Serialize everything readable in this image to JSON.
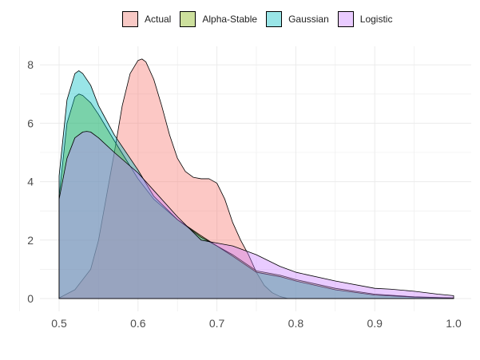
{
  "chart_data": {
    "type": "area",
    "title": "",
    "xlabel": "",
    "ylabel": "",
    "xlim": [
      0.5,
      1.0
    ],
    "ylim": [
      0,
      8.4
    ],
    "x_ticks": [
      "0.5",
      "0.6",
      "0.7",
      "0.8",
      "0.9",
      "1.0"
    ],
    "y_ticks": [
      "0",
      "2",
      "4",
      "6",
      "8"
    ],
    "grid": true,
    "legend_position": "top",
    "series": [
      {
        "name": "Actual",
        "color": "#F8766D",
        "x": [
          0.5,
          0.52,
          0.54,
          0.55,
          0.56,
          0.57,
          0.58,
          0.59,
          0.6,
          0.605,
          0.61,
          0.62,
          0.63,
          0.64,
          0.65,
          0.66,
          0.67,
          0.68,
          0.69,
          0.7,
          0.71,
          0.72,
          0.73,
          0.74,
          0.75,
          0.76,
          0.77,
          0.78,
          0.79
        ],
        "y": [
          0.02,
          0.3,
          1.0,
          2.0,
          3.5,
          5.0,
          6.6,
          7.7,
          8.15,
          8.2,
          8.1,
          7.5,
          6.6,
          5.6,
          4.8,
          4.35,
          4.15,
          4.1,
          4.1,
          3.95,
          3.4,
          2.6,
          2.0,
          1.5,
          0.9,
          0.45,
          0.2,
          0.07,
          0.0
        ]
      },
      {
        "name": "Alpha-Stable",
        "color": "#7CAE00",
        "x": [
          0.5,
          0.51,
          0.52,
          0.525,
          0.53,
          0.54,
          0.55,
          0.57,
          0.6,
          0.62,
          0.65,
          0.68,
          0.7,
          0.72,
          0.75,
          0.78,
          0.8,
          0.85,
          0.9,
          0.95,
          1.0
        ],
        "y": [
          3.5,
          6.0,
          6.9,
          7.0,
          6.95,
          6.7,
          6.3,
          5.4,
          4.1,
          3.4,
          2.7,
          2.15,
          1.8,
          1.5,
          0.95,
          0.8,
          0.65,
          0.35,
          0.15,
          0.06,
          0.02
        ]
      },
      {
        "name": "Gaussian",
        "color": "#00BFC4",
        "x": [
          0.5,
          0.51,
          0.52,
          0.525,
          0.53,
          0.54,
          0.55,
          0.57,
          0.6,
          0.62,
          0.65,
          0.68,
          0.7,
          0.72,
          0.75,
          0.78,
          0.8,
          0.85,
          0.9,
          0.95,
          1.0
        ],
        "y": [
          4.2,
          6.8,
          7.7,
          7.8,
          7.7,
          7.3,
          6.6,
          5.6,
          4.4,
          3.5,
          2.7,
          2.1,
          1.8,
          1.45,
          0.9,
          0.75,
          0.6,
          0.3,
          0.12,
          0.05,
          0.02
        ]
      },
      {
        "name": "Logistic",
        "color": "#C77CFF",
        "x": [
          0.5,
          0.51,
          0.52,
          0.53,
          0.535,
          0.54,
          0.55,
          0.57,
          0.6,
          0.62,
          0.65,
          0.68,
          0.7,
          0.72,
          0.75,
          0.78,
          0.8,
          0.85,
          0.9,
          0.92,
          0.95,
          0.98,
          1.0
        ],
        "y": [
          3.4,
          4.8,
          5.5,
          5.7,
          5.72,
          5.7,
          5.5,
          5.0,
          4.3,
          3.7,
          2.8,
          2.0,
          1.9,
          1.8,
          1.5,
          1.1,
          0.9,
          0.6,
          0.35,
          0.32,
          0.25,
          0.15,
          0.1
        ]
      }
    ]
  }
}
